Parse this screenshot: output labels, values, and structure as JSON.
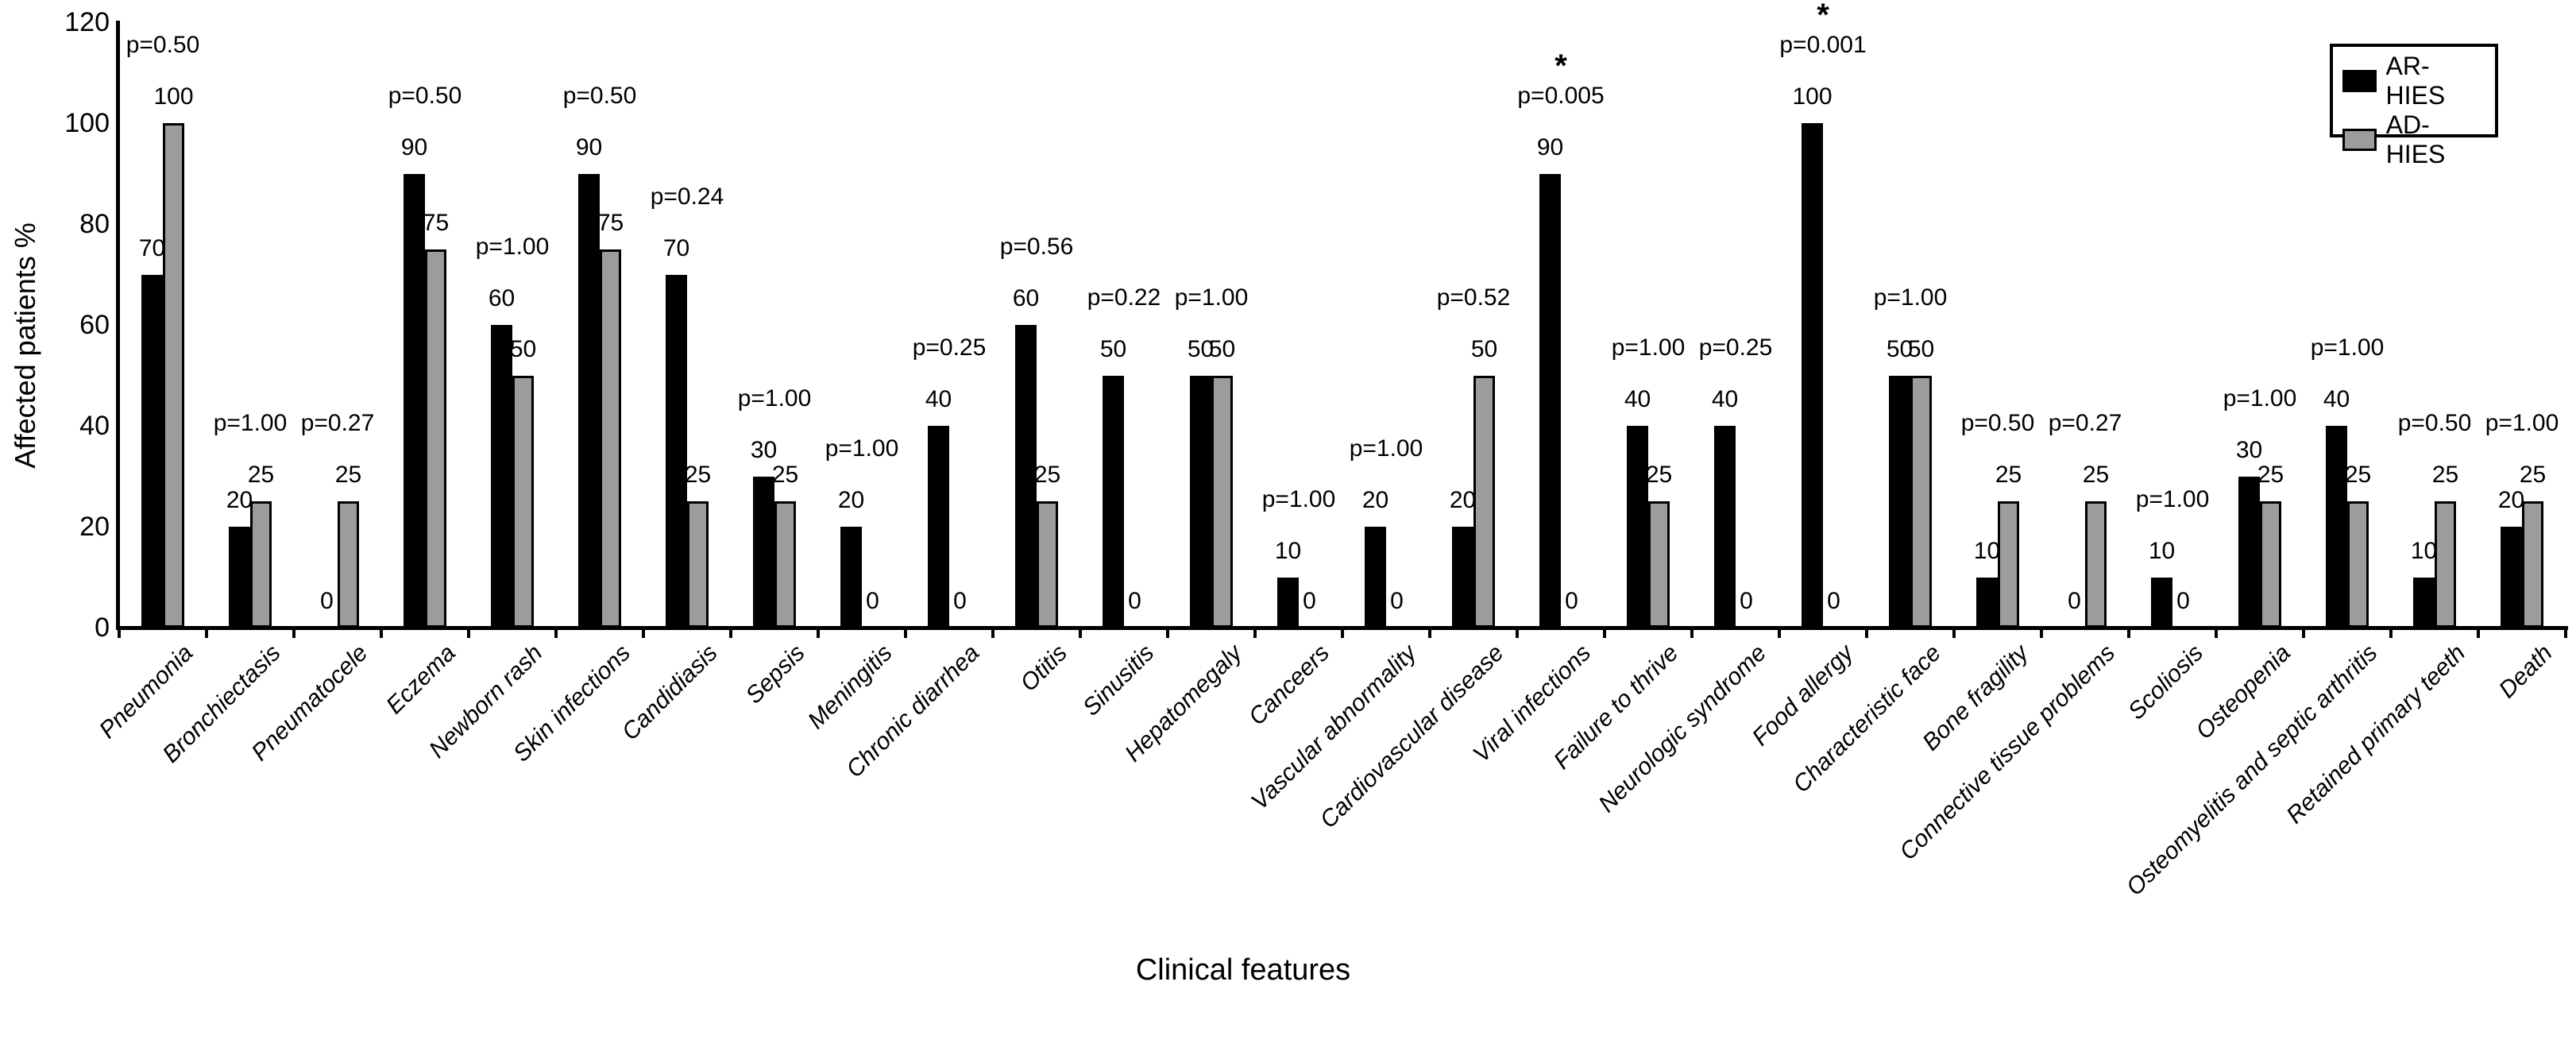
{
  "figure": {
    "y_axis_title": "Affected patients %",
    "x_axis_title": "Clinical features"
  },
  "legend": {
    "items": [
      {
        "label": "AR-HIES",
        "color": "#000000"
      },
      {
        "label": "AD-HIES",
        "color": "#9c9c9c"
      }
    ]
  },
  "chart_data": {
    "type": "bar",
    "title": "",
    "xlabel": "Clinical features",
    "ylabel": "Affected patients %",
    "ylim": [
      0,
      120
    ],
    "yticks": [
      0,
      20,
      40,
      60,
      80,
      100,
      120
    ],
    "grid": false,
    "legend_position": "top-right",
    "categories": [
      "Pneumonia",
      "Bronchiectasis",
      "Pneumatocele",
      "Eczema",
      "Newborn rash",
      "Skin infections",
      "Candidiasis",
      "Sepsis",
      "Meningitis",
      "Chronic diarrhea",
      "Otitis",
      "Sinusitis",
      "Hepatomegaly",
      "Canceers",
      "Vascular abnormality",
      "Cardiovascular disease",
      "Viral infections",
      "Failure to thrive",
      "Neurologic syndrome",
      "Food allergy",
      "Characteristic face",
      "Bone fragility",
      "Connective tissue problems",
      "Scoliosis",
      "Osteopenia",
      "Osteomyelitis and septic arthritis",
      "Retained primary teeth",
      "Death"
    ],
    "series": [
      {
        "name": "AR-HIES",
        "color": "#000000",
        "values": [
          70,
          20,
          0,
          90,
          60,
          90,
          70,
          30,
          20,
          40,
          60,
          50,
          50,
          10,
          20,
          20,
          90,
          40,
          40,
          100,
          50,
          10,
          0,
          10,
          30,
          40,
          10,
          20
        ]
      },
      {
        "name": "AD-HIES",
        "color": "#9c9c9c",
        "values": [
          100,
          25,
          25,
          75,
          50,
          75,
          25,
          25,
          0,
          0,
          25,
          0,
          50,
          0,
          0,
          50,
          0,
          25,
          0,
          0,
          50,
          25,
          25,
          0,
          25,
          25,
          25,
          25
        ]
      }
    ],
    "p_values": [
      "p=0.50",
      "p=1.00",
      "p=0.27",
      "p=0.50",
      "p=1.00",
      "p=0.50",
      "p=0.24",
      "p=1.00",
      "p=1.00",
      "p=0.25",
      "p=0.56",
      "p=0.22",
      "p=1.00",
      "p=1.00",
      "p=1.00",
      "p=0.52",
      "p=0.005",
      "p=1.00",
      "p=0.25",
      "p=0.001",
      "p=1.00",
      "p=0.50",
      "p=0.27",
      "p=1.00",
      "p=1.00",
      "p=1.00",
      "p=0.50",
      "p=1.00"
    ],
    "significance_asterisks": [
      false,
      false,
      false,
      false,
      false,
      false,
      false,
      false,
      false,
      false,
      false,
      false,
      false,
      false,
      false,
      false,
      true,
      false,
      false,
      true,
      false,
      false,
      false,
      false,
      false,
      false,
      false,
      false
    ],
    "asterisk_symbol": "*"
  }
}
